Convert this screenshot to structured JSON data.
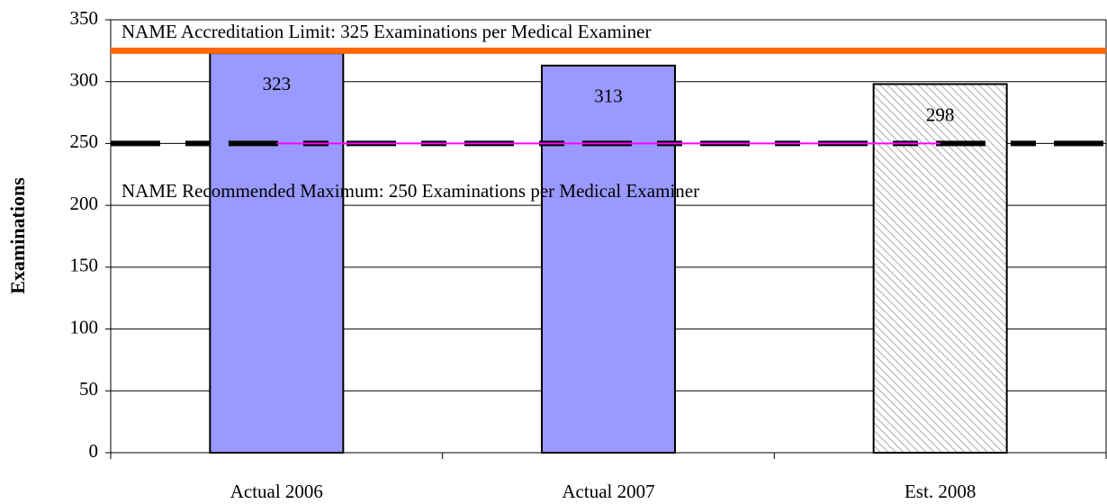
{
  "chart_data": {
    "type": "bar",
    "y_label": "Examinations",
    "categories": [
      "Actual 2006",
      "Actual 2007",
      "Est. 2008"
    ],
    "values": [
      323,
      313,
      298
    ],
    "colors": [
      "#9999ff",
      "#9999ff",
      "#d9d9d9"
    ],
    "hatched": [
      false,
      false,
      true
    ],
    "ylim": [
      0,
      350
    ],
    "yticks": [
      0,
      50,
      100,
      150,
      200,
      250,
      300,
      350
    ],
    "grid": true,
    "reference_lines": [
      {
        "value": 325,
        "label": "NAME Accreditation Limit:  325 Examinations per Medical Examiner",
        "color": "#ff6600",
        "dashed": false
      },
      {
        "value": 250,
        "label": "NAME Recommended Maximum:  250 Examinations per Medical Examiner",
        "color": "#000000",
        "dashed": true
      }
    ],
    "line_values": [
      250,
      250,
      250
    ],
    "line_color": "#ff00ff"
  }
}
